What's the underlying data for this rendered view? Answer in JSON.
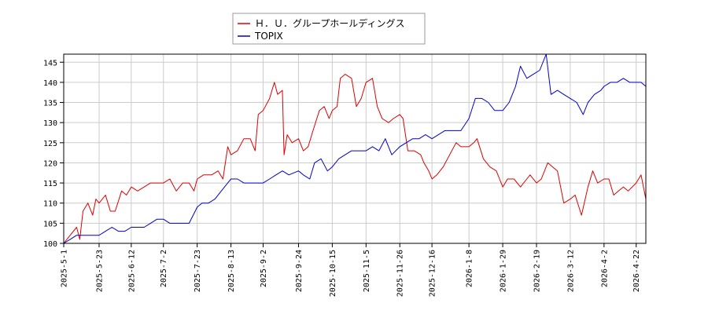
{
  "chart_data": {
    "type": "line",
    "title": "",
    "xlabel": "",
    "ylabel": "",
    "ylim": [
      100,
      147
    ],
    "yticks": [
      100,
      105,
      110,
      115,
      120,
      125,
      130,
      135,
      140,
      145
    ],
    "xticks": [
      "2025-5-1",
      "2025-5-23",
      "2025-6-12",
      "2025-7-2",
      "2025-7-23",
      "2025-8-13",
      "2025-9-2",
      "2025-9-24",
      "2025-10-15",
      "2025-11-5",
      "2025-11-26",
      "2025-12-16",
      "2026-1-8",
      "2026-1-29",
      "2026-2-19",
      "2026-3-12",
      "2026-4-2",
      "2026-4-22"
    ],
    "grid": true,
    "legend_position": "top-center",
    "series": [
      {
        "name": "Ｈ．Ｕ．グループホールディングス",
        "color": "#dd0000",
        "points": [
          [
            "2025-5-1",
            100
          ],
          [
            "2025-5-5",
            102
          ],
          [
            "2025-5-9",
            104
          ],
          [
            "2025-5-11",
            101
          ],
          [
            "2025-5-13",
            108
          ],
          [
            "2025-5-16",
            110
          ],
          [
            "2025-5-19",
            107
          ],
          [
            "2025-5-21",
            111
          ],
          [
            "2025-5-23",
            110
          ],
          [
            "2025-5-27",
            112
          ],
          [
            "2025-5-30",
            108
          ],
          [
            "2025-6-2",
            108
          ],
          [
            "2025-6-6",
            113
          ],
          [
            "2025-6-9",
            112
          ],
          [
            "2025-6-12",
            114
          ],
          [
            "2025-6-16",
            113
          ],
          [
            "2025-6-20",
            114
          ],
          [
            "2025-6-24",
            115
          ],
          [
            "2025-6-28",
            115
          ],
          [
            "2025-7-2",
            115
          ],
          [
            "2025-7-6",
            116
          ],
          [
            "2025-7-10",
            113
          ],
          [
            "2025-7-14",
            115
          ],
          [
            "2025-7-18",
            115
          ],
          [
            "2025-7-21",
            113
          ],
          [
            "2025-7-23",
            116
          ],
          [
            "2025-7-27",
            117
          ],
          [
            "2025-8-1",
            117
          ],
          [
            "2025-8-5",
            118
          ],
          [
            "2025-8-8",
            116
          ],
          [
            "2025-8-11",
            124
          ],
          [
            "2025-8-13",
            122
          ],
          [
            "2025-8-17",
            123
          ],
          [
            "2025-8-21",
            126
          ],
          [
            "2025-8-25",
            126
          ],
          [
            "2025-8-28",
            123
          ],
          [
            "2025-8-30",
            132
          ],
          [
            "2025-9-2",
            133
          ],
          [
            "2025-9-6",
            136
          ],
          [
            "2025-9-9",
            140
          ],
          [
            "2025-9-11",
            137
          ],
          [
            "2025-9-14",
            138
          ],
          [
            "2025-9-15",
            122
          ],
          [
            "2025-9-17",
            127
          ],
          [
            "2025-9-20",
            125
          ],
          [
            "2025-9-24",
            126
          ],
          [
            "2025-9-27",
            123
          ],
          [
            "2025-9-30",
            124
          ],
          [
            "2025-10-3",
            128
          ],
          [
            "2025-10-7",
            133
          ],
          [
            "2025-10-10",
            134
          ],
          [
            "2025-10-13",
            131
          ],
          [
            "2025-10-15",
            133
          ],
          [
            "2025-10-18",
            134
          ],
          [
            "2025-10-20",
            141
          ],
          [
            "2025-10-23",
            142
          ],
          [
            "2025-10-27",
            141
          ],
          [
            "2025-10-30",
            134
          ],
          [
            "2025-11-2",
            136
          ],
          [
            "2025-11-5",
            140
          ],
          [
            "2025-11-9",
            141
          ],
          [
            "2025-11-12",
            134
          ],
          [
            "2025-11-15",
            131
          ],
          [
            "2025-11-19",
            130
          ],
          [
            "2025-11-22",
            131
          ],
          [
            "2025-11-26",
            132
          ],
          [
            "2025-11-28",
            131
          ],
          [
            "2025-12-1",
            123
          ],
          [
            "2025-12-5",
            123
          ],
          [
            "2025-12-9",
            122
          ],
          [
            "2025-12-11",
            120
          ],
          [
            "2025-12-14",
            118
          ],
          [
            "2025-12-16",
            116
          ],
          [
            "2025-12-19",
            117
          ],
          [
            "2025-12-23",
            119
          ],
          [
            "2025-12-27",
            122
          ],
          [
            "2025-12-31",
            125
          ],
          [
            "2026-1-3",
            124
          ],
          [
            "2026-1-8",
            124
          ],
          [
            "2026-1-11",
            125
          ],
          [
            "2026-1-13",
            126
          ],
          [
            "2026-1-17",
            121
          ],
          [
            "2026-1-21",
            119
          ],
          [
            "2026-1-25",
            118
          ],
          [
            "2026-1-29",
            114
          ],
          [
            "2026-2-1",
            116
          ],
          [
            "2026-2-5",
            116
          ],
          [
            "2026-2-9",
            114
          ],
          [
            "2026-2-13",
            116
          ],
          [
            "2026-2-15",
            117
          ],
          [
            "2026-2-19",
            115
          ],
          [
            "2026-2-22",
            116
          ],
          [
            "2026-2-26",
            120
          ],
          [
            "2026-3-1",
            119
          ],
          [
            "2026-3-4",
            118
          ],
          [
            "2026-3-8",
            110
          ],
          [
            "2026-3-12",
            111
          ],
          [
            "2026-3-15",
            112
          ],
          [
            "2026-3-19",
            107
          ],
          [
            "2026-3-23",
            114
          ],
          [
            "2026-3-26",
            118
          ],
          [
            "2026-3-29",
            115
          ],
          [
            "2026-4-2",
            116
          ],
          [
            "2026-4-5",
            116
          ],
          [
            "2026-4-8",
            112
          ],
          [
            "2026-4-11",
            113
          ],
          [
            "2026-4-14",
            114
          ],
          [
            "2026-4-17",
            113
          ],
          [
            "2026-4-22",
            115
          ],
          [
            "2026-4-25",
            117
          ],
          [
            "2026-4-28",
            111
          ]
        ]
      },
      {
        "name": "TOPIX",
        "color": "#0000cc",
        "points": [
          [
            "2025-5-1",
            100
          ],
          [
            "2025-5-5",
            101
          ],
          [
            "2025-5-9",
            102
          ],
          [
            "2025-5-13",
            102
          ],
          [
            "2025-5-17",
            102
          ],
          [
            "2025-5-21",
            102
          ],
          [
            "2025-5-23",
            102
          ],
          [
            "2025-5-27",
            103
          ],
          [
            "2025-5-31",
            104
          ],
          [
            "2025-6-4",
            103
          ],
          [
            "2025-6-8",
            103
          ],
          [
            "2025-6-12",
            104
          ],
          [
            "2025-6-16",
            104
          ],
          [
            "2025-6-20",
            104
          ],
          [
            "2025-6-24",
            105
          ],
          [
            "2025-6-28",
            106
          ],
          [
            "2025-7-2",
            106
          ],
          [
            "2025-7-6",
            105
          ],
          [
            "2025-7-10",
            105
          ],
          [
            "2025-7-14",
            105
          ],
          [
            "2025-7-18",
            105
          ],
          [
            "2025-7-23",
            109
          ],
          [
            "2025-7-26",
            110
          ],
          [
            "2025-7-30",
            110
          ],
          [
            "2025-8-3",
            111
          ],
          [
            "2025-8-7",
            113
          ],
          [
            "2025-8-11",
            115
          ],
          [
            "2025-8-13",
            116
          ],
          [
            "2025-8-17",
            116
          ],
          [
            "2025-8-21",
            115
          ],
          [
            "2025-8-25",
            115
          ],
          [
            "2025-8-29",
            115
          ],
          [
            "2025-9-2",
            115
          ],
          [
            "2025-9-6",
            116
          ],
          [
            "2025-9-10",
            117
          ],
          [
            "2025-9-14",
            118
          ],
          [
            "2025-9-18",
            117
          ],
          [
            "2025-9-24",
            118
          ],
          [
            "2025-9-27",
            117
          ],
          [
            "2025-10-1",
            116
          ],
          [
            "2025-10-4",
            120
          ],
          [
            "2025-10-8",
            121
          ],
          [
            "2025-10-12",
            118
          ],
          [
            "2025-10-15",
            119
          ],
          [
            "2025-10-19",
            121
          ],
          [
            "2025-10-23",
            122
          ],
          [
            "2025-10-27",
            123
          ],
          [
            "2025-10-31",
            123
          ],
          [
            "2025-11-5",
            123
          ],
          [
            "2025-11-9",
            124
          ],
          [
            "2025-11-13",
            123
          ],
          [
            "2025-11-17",
            126
          ],
          [
            "2025-11-21",
            122
          ],
          [
            "2025-11-26",
            124
          ],
          [
            "2025-11-30",
            125
          ],
          [
            "2025-12-4",
            126
          ],
          [
            "2025-12-8",
            126
          ],
          [
            "2025-12-12",
            127
          ],
          [
            "2025-12-16",
            126
          ],
          [
            "2025-12-20",
            127
          ],
          [
            "2025-12-24",
            128
          ],
          [
            "2025-12-28",
            128
          ],
          [
            "2026-1-3",
            128
          ],
          [
            "2026-1-8",
            131
          ],
          [
            "2026-1-12",
            136
          ],
          [
            "2026-1-16",
            136
          ],
          [
            "2026-1-20",
            135
          ],
          [
            "2026-1-24",
            133
          ],
          [
            "2026-1-29",
            133
          ],
          [
            "2026-2-2",
            135
          ],
          [
            "2026-2-6",
            139
          ],
          [
            "2026-2-9",
            144
          ],
          [
            "2026-2-13",
            141
          ],
          [
            "2026-2-17",
            142
          ],
          [
            "2026-2-21",
            143
          ],
          [
            "2026-2-25",
            147
          ],
          [
            "2026-2-28",
            137
          ],
          [
            "2026-3-4",
            138
          ],
          [
            "2026-3-8",
            137
          ],
          [
            "2026-3-12",
            136
          ],
          [
            "2026-3-16",
            135
          ],
          [
            "2026-3-20",
            132
          ],
          [
            "2026-3-23",
            135
          ],
          [
            "2026-3-27",
            137
          ],
          [
            "2026-3-31",
            138
          ],
          [
            "2026-4-2",
            139
          ],
          [
            "2026-4-6",
            140
          ],
          [
            "2026-4-10",
            140
          ],
          [
            "2026-4-14",
            141
          ],
          [
            "2026-4-18",
            140
          ],
          [
            "2026-4-22",
            140
          ],
          [
            "2026-4-25",
            140
          ],
          [
            "2026-4-28",
            139
          ]
        ]
      }
    ]
  }
}
